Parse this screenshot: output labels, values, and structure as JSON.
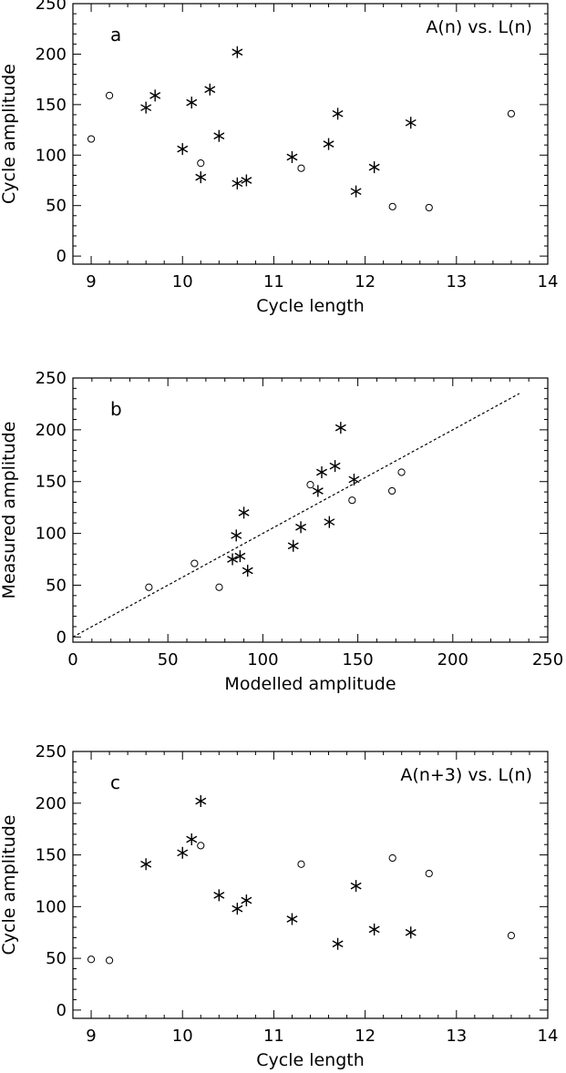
{
  "chart_data": [
    {
      "type": "scatter",
      "panel_label": "a",
      "annotation": "A(n) vs. L(n)",
      "xlabel": "Cycle length",
      "ylabel": "Cycle amplitude",
      "xlim": [
        8.8,
        14
      ],
      "ylim": [
        -8,
        250
      ],
      "xticks": [
        "9",
        "10",
        "11",
        "12",
        "13",
        "14"
      ],
      "yticks": [
        "0",
        "50",
        "100",
        "150",
        "200",
        "250"
      ],
      "series": [
        {
          "marker": "star",
          "points": [
            [
              9.6,
              147
            ],
            [
              9.7,
              159
            ],
            [
              10.0,
              106
            ],
            [
              10.1,
              152
            ],
            [
              10.2,
              78
            ],
            [
              10.3,
              165
            ],
            [
              10.4,
              119
            ],
            [
              10.6,
              202
            ],
            [
              10.6,
              72
            ],
            [
              10.7,
              75
            ],
            [
              11.2,
              98
            ],
            [
              11.6,
              111
            ],
            [
              11.7,
              141
            ],
            [
              11.9,
              64
            ],
            [
              12.1,
              88
            ],
            [
              12.5,
              132
            ]
          ]
        },
        {
          "marker": "circle",
          "points": [
            [
              9.0,
              116
            ],
            [
              9.2,
              159
            ],
            [
              10.2,
              92
            ],
            [
              11.3,
              87
            ],
            [
              12.3,
              49
            ],
            [
              12.7,
              48
            ],
            [
              13.6,
              141
            ]
          ]
        }
      ]
    },
    {
      "type": "scatter",
      "panel_label": "b",
      "xlabel": "Modelled amplitude",
      "ylabel": "Measured amplitude",
      "xlim": [
        0,
        250
      ],
      "ylim": [
        -5,
        250
      ],
      "xticks": [
        "0",
        "50",
        "100",
        "150",
        "200",
        "250"
      ],
      "yticks": [
        "0",
        "50",
        "100",
        "150",
        "200",
        "250"
      ],
      "reference_line": {
        "from": [
          0,
          0
        ],
        "to": [
          235,
          235
        ],
        "style": "dotted"
      },
      "series": [
        {
          "marker": "star",
          "points": [
            [
              84,
              75
            ],
            [
              86,
              98
            ],
            [
              88,
              78
            ],
            [
              90,
              120
            ],
            [
              92,
              64
            ],
            [
              116,
              88
            ],
            [
              120,
              106
            ],
            [
              129,
              141
            ],
            [
              131,
              159
            ],
            [
              135,
              111
            ],
            [
              138,
              165
            ],
            [
              141,
              202
            ],
            [
              148,
              152
            ]
          ]
        },
        {
          "marker": "circle",
          "points": [
            [
              40,
              48
            ],
            [
              64,
              71
            ],
            [
              77,
              48
            ],
            [
              125,
              147
            ],
            [
              147,
              132
            ],
            [
              168,
              141
            ],
            [
              173,
              159
            ]
          ]
        }
      ]
    },
    {
      "type": "scatter",
      "panel_label": "c",
      "annotation": "A(n+3) vs. L(n)",
      "xlabel": "Cycle length",
      "ylabel": "Cycle amplitude",
      "xlim": [
        8.8,
        14
      ],
      "ylim": [
        -8,
        250
      ],
      "xticks": [
        "9",
        "10",
        "11",
        "12",
        "13",
        "14"
      ],
      "yticks": [
        "0",
        "50",
        "100",
        "150",
        "200",
        "250"
      ],
      "series": [
        {
          "marker": "star",
          "points": [
            [
              9.6,
              141
            ],
            [
              10.0,
              152
            ],
            [
              10.1,
              165
            ],
            [
              10.2,
              202
            ],
            [
              10.4,
              111
            ],
            [
              10.6,
              98
            ],
            [
              10.7,
              106
            ],
            [
              11.2,
              88
            ],
            [
              11.7,
              64
            ],
            [
              11.9,
              120
            ],
            [
              12.1,
              78
            ],
            [
              12.5,
              75
            ]
          ]
        },
        {
          "marker": "circle",
          "points": [
            [
              9.0,
              49
            ],
            [
              9.2,
              48
            ],
            [
              10.2,
              159
            ],
            [
              11.3,
              141
            ],
            [
              12.3,
              147
            ],
            [
              12.7,
              132
            ],
            [
              13.6,
              72
            ]
          ]
        }
      ]
    }
  ]
}
